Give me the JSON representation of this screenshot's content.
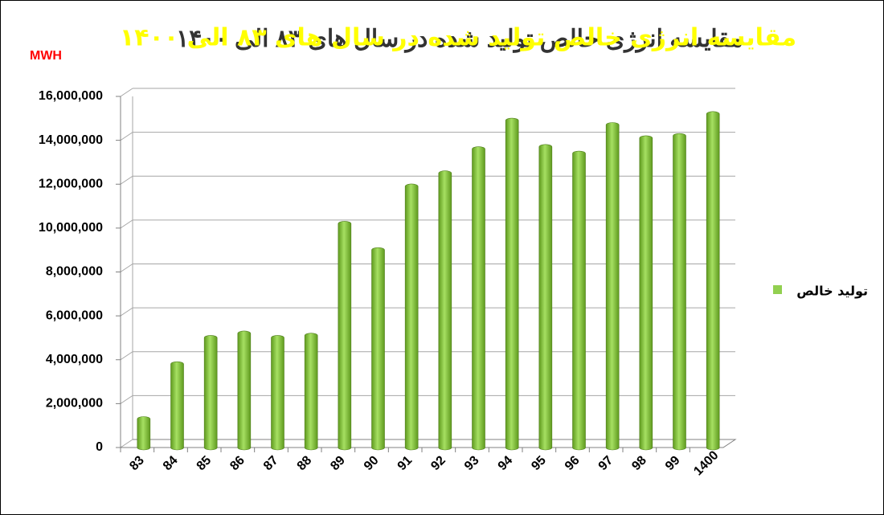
{
  "chart_data": {
    "type": "bar",
    "title": "مقایسه انرژی خالص تولید شده در سال های ۸۳ الی ۱۴۰۰",
    "unit_label": "MWH",
    "categories": [
      "83",
      "84",
      "85",
      "86",
      "87",
      "88",
      "89",
      "90",
      "91",
      "92",
      "93",
      "94",
      "95",
      "96",
      "97",
      "98",
      "99",
      "1400"
    ],
    "series": [
      {
        "name": "تولید خالص",
        "color": "#92d050",
        "values": [
          1300000,
          3800000,
          5000000,
          5200000,
          5000000,
          5100000,
          10200000,
          9000000,
          11900000,
          12500000,
          13600000,
          14900000,
          13700000,
          13400000,
          14700000,
          14100000,
          14200000,
          15200000
        ]
      }
    ],
    "ylim": [
      0,
      16000000
    ],
    "yticks": [
      0,
      {
        "value": 2000000,
        "label": "2,000,000"
      },
      {
        "value": 4000000,
        "label": "4,000,000"
      },
      {
        "value": 6000000,
        "label": "6,000,000"
      },
      {
        "value": 8000000,
        "label": "8,000,000"
      },
      {
        "value": 10000000,
        "label": "10,000,000"
      },
      {
        "value": 12000000,
        "label": "12,000,000"
      },
      {
        "value": 14000000,
        "label": "14,000,000"
      },
      {
        "value": 16000000,
        "label": "16,000,000"
      }
    ],
    "grid": true,
    "legend": "right"
  }
}
